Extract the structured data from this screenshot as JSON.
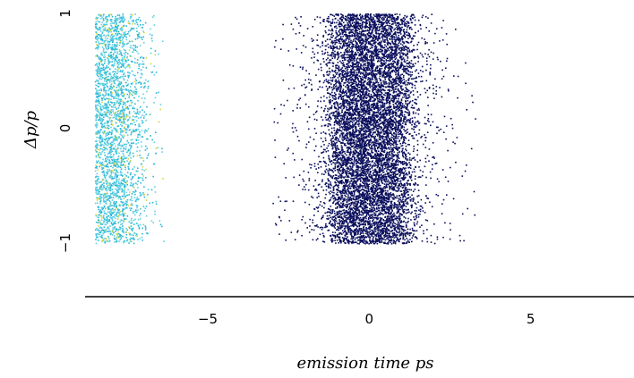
{
  "chart_data": {
    "type": "scatter",
    "title": "",
    "xlabel": "emission time ps",
    "ylabel": "Δp/p",
    "xlim": [
      -8.8,
      8.2
    ],
    "ylim": [
      -1,
      1
    ],
    "x_ticks": [
      -5,
      0,
      5
    ],
    "x_tick_labels": [
      "−5",
      "0",
      "5"
    ],
    "y_ticks": [
      -1,
      0,
      1
    ],
    "y_tick_labels": [
      "−1",
      "0",
      "1"
    ],
    "grid": false,
    "legend": "none",
    "series": [
      {
        "color": "#0b0f5c",
        "point_count": 9000,
        "x_center": 0.0,
        "x_core_halfwidth": 1.1,
        "x_min": -3.0,
        "x_max": 3.3,
        "y_range": [
          -1,
          1
        ]
      },
      {
        "colors": [
          "#2ab8d6",
          "#5fd0e4",
          "#d8d640"
        ],
        "point_count": 2600,
        "x_min": -8.5,
        "x_edge_dense": -7.6,
        "x_max": -6.3,
        "y_range": [
          -1,
          1
        ]
      }
    ]
  }
}
